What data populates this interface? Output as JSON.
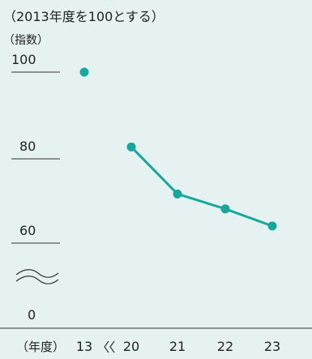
{
  "chart_data": {
    "type": "line",
    "subtitle": "（2013年度を100とする）",
    "ylabel": "（指数）",
    "xlabel": "（年度）",
    "categories": [
      "13",
      "20",
      "21",
      "22",
      "23"
    ],
    "ylim": [
      0,
      100
    ],
    "yticks": [
      "100",
      "80",
      "60",
      "0"
    ],
    "axis_break_y": true,
    "axis_break_x": true,
    "series": [
      {
        "values": [
          100,
          82.5,
          71.5,
          68.0,
          64.0
        ],
        "color": "#17a79b",
        "connected_from_index": 1
      }
    ],
    "colors": {
      "background": "#e6f2f1",
      "line": "#17a79b",
      "axis": "#333333"
    }
  }
}
